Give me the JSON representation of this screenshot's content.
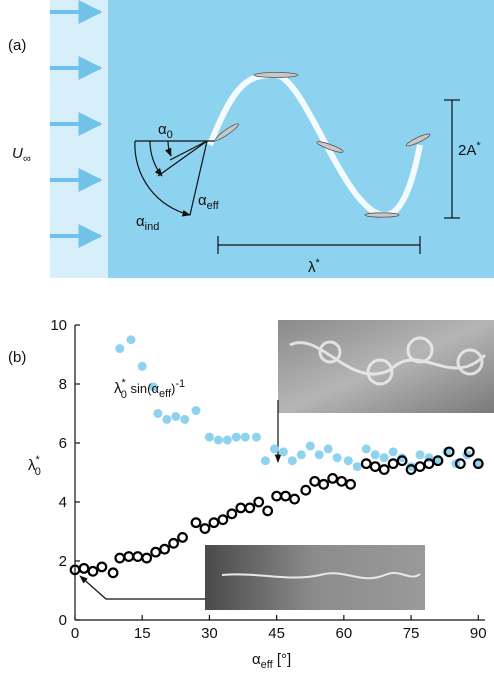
{
  "panel_a": {
    "label": "(a)",
    "freestream": {
      "base": "U",
      "sub": "∞"
    },
    "alpha_0": {
      "base": "α",
      "sub": "0"
    },
    "alpha_eff": {
      "base": "α",
      "sub": "eff"
    },
    "alpha_ind": {
      "base": "α",
      "sub": "ind"
    },
    "amplitude": {
      "base": "2A",
      "sup": "*"
    },
    "wavelength": {
      "base": "λ",
      "sup": "*"
    }
  },
  "chart_data": {
    "type": "scatter",
    "panel_label": "(b)",
    "xlabel": {
      "base": "α",
      "sub": "eff",
      "unit": " [°]"
    },
    "ylabel": {
      "base": "λ",
      "sup": "*",
      "sub": "0"
    },
    "annotation": {
      "base": "λ",
      "sup": "*",
      "sub": "0",
      "text": " sin(",
      "arg_base": "α",
      "arg_sub": "eff",
      "close": ")",
      "exp": "-1"
    },
    "xlim": [
      0,
      91.5
    ],
    "ylim": [
      0,
      10
    ],
    "xticks": [
      0,
      15,
      30,
      45,
      60,
      75,
      90
    ],
    "yticks": [
      0,
      2,
      4,
      6,
      8,
      10
    ],
    "series": [
      {
        "color": "#8dd3f0",
        "filled": true,
        "x": [
          10,
          12.5,
          15,
          17.5,
          18.5,
          20.5,
          22.5,
          24.5,
          27,
          30,
          32,
          34,
          36,
          38,
          40.5,
          42.5,
          44.5,
          46.5,
          48.5,
          50.5,
          52.5,
          54.5,
          56.5,
          58.5,
          61,
          63,
          65,
          67,
          69,
          71,
          73,
          75,
          77,
          79,
          81,
          83,
          85,
          87.5,
          90
        ],
        "values": [
          9.2,
          9.5,
          8.6,
          7.9,
          7.0,
          6.8,
          6.9,
          6.8,
          7.1,
          6.2,
          6.1,
          6.1,
          6.2,
          6.2,
          6.2,
          5.4,
          5.8,
          5.7,
          5.4,
          5.6,
          5.9,
          5.6,
          5.8,
          5.5,
          5.4,
          5.2,
          5.8,
          5.6,
          5.5,
          5.7,
          5.5,
          5.2,
          5.6,
          5.5,
          5.4,
          5.7,
          5.3,
          5.6,
          5.3
        ]
      },
      {
        "color": "#000000",
        "filled": false,
        "x": [
          0,
          2,
          4,
          6,
          8.5,
          10,
          12,
          14,
          16,
          18,
          20,
          22,
          24,
          27,
          29,
          31,
          33,
          35,
          37,
          39,
          41,
          43,
          45,
          47,
          49,
          51.5,
          53.5,
          55.5,
          57.5,
          59.5,
          61.5,
          65,
          67,
          69,
          71,
          73,
          75,
          77,
          79,
          81,
          83.5,
          86,
          88,
          90
        ],
        "values": [
          1.7,
          1.75,
          1.65,
          1.8,
          1.6,
          2.1,
          2.15,
          2.15,
          2.1,
          2.3,
          2.4,
          2.6,
          2.8,
          3.3,
          3.1,
          3.3,
          3.4,
          3.6,
          3.8,
          3.8,
          4.0,
          3.7,
          4.2,
          4.2,
          4.1,
          4.4,
          4.7,
          4.6,
          4.8,
          4.7,
          4.6,
          5.3,
          5.2,
          5.1,
          5.3,
          5.4,
          5.1,
          5.2,
          5.3,
          5.4,
          5.7,
          5.3,
          5.7,
          5.3
        ]
      }
    ]
  }
}
